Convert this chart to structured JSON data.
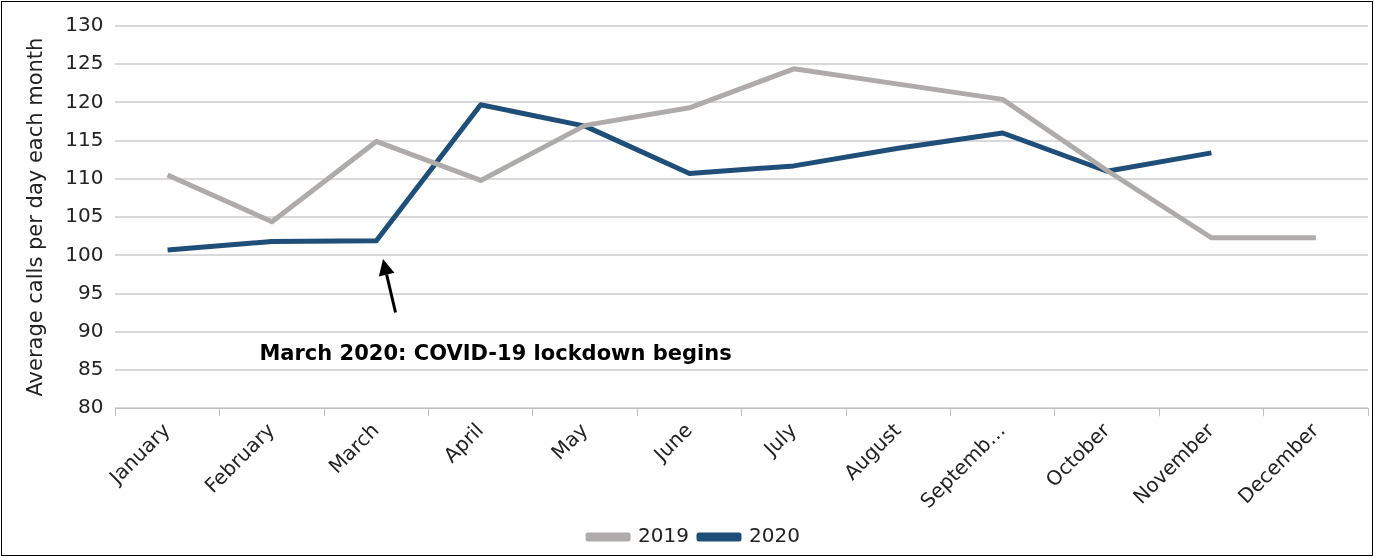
{
  "chart_data": {
    "type": "line",
    "ylabel": "Average calls per day each month",
    "categories": [
      "January",
      "February",
      "March",
      "April",
      "May",
      "June",
      "July",
      "August",
      "Septemb…",
      "October",
      "November",
      "December"
    ],
    "series": [
      {
        "name": "2019",
        "color": "#afabab",
        "values": [
          110.5,
          104.4,
          114.9,
          109.8,
          117,
          119.3,
          124.4,
          122.4,
          120.4,
          111.1,
          102.3,
          102.3
        ]
      },
      {
        "name": "2020",
        "color": "#1f4e79",
        "values": [
          100.7,
          101.8,
          101.9,
          119.7,
          116.9,
          110.7,
          111.7,
          114,
          116,
          111,
          113.4,
          null
        ]
      }
    ],
    "ylim": [
      80,
      130
    ],
    "yticks": [
      80,
      85,
      90,
      95,
      100,
      105,
      110,
      115,
      120,
      125,
      130
    ],
    "grid": "y",
    "legend": "bottom",
    "marker": "none",
    "line_style": "solid",
    "annotations": [
      "March 2020: COVID-19 lockdown begins"
    ]
  }
}
